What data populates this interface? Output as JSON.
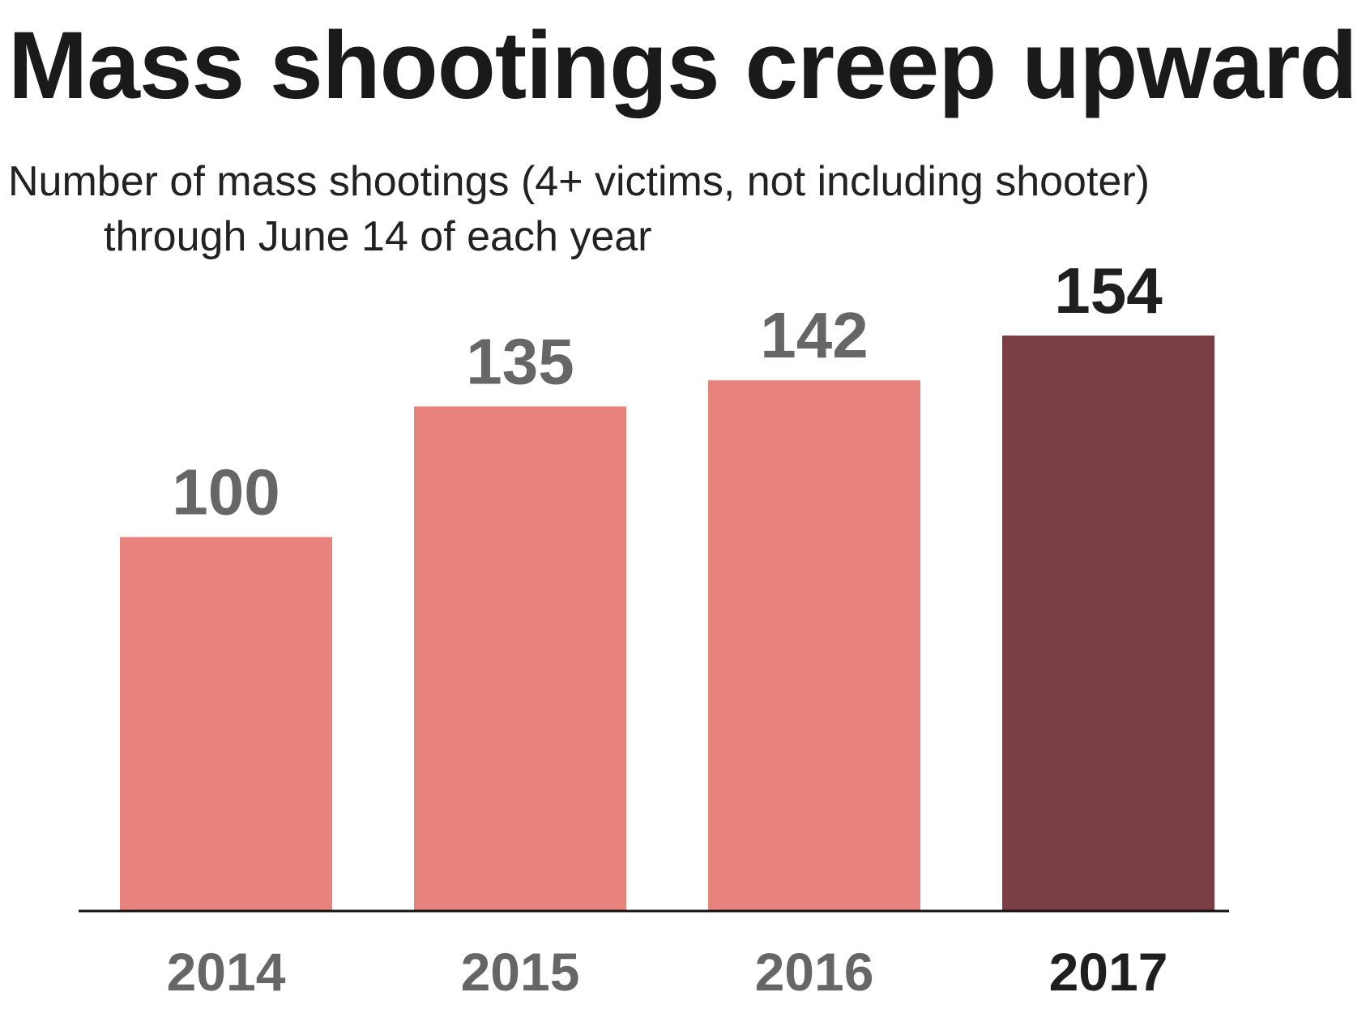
{
  "chart_data": {
    "type": "bar",
    "title": "Mass shootings creep upward",
    "subtitle_lines": [
      "Number of mass shootings (4+ victims, not including shooter)",
      "through June 14 of each year"
    ],
    "categories": [
      "2014",
      "2015",
      "2016",
      "2017"
    ],
    "values": [
      100,
      135,
      142,
      154
    ],
    "data_labels": [
      "100",
      "135",
      "142",
      "154"
    ],
    "highlight_category": "2017",
    "xlabel": "",
    "ylabel": "",
    "ylim": [
      0,
      154
    ],
    "grid": false,
    "legend": "none",
    "colors": {
      "bar": "#e8827c",
      "bar_highlight": "#7a3e44",
      "label": "#666666",
      "label_highlight": "#1f1f1f",
      "axis": "#111111"
    }
  }
}
